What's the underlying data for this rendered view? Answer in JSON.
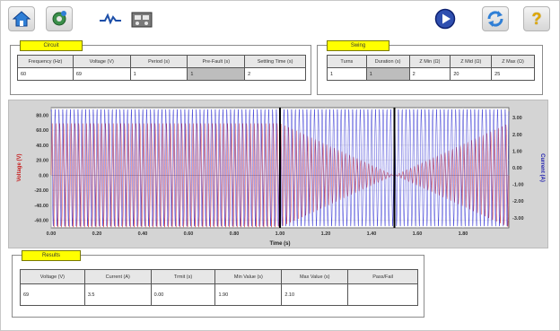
{
  "toolbar": {
    "left": [
      {
        "name": "home-icon"
      },
      {
        "name": "settings-gear-icon"
      },
      {
        "name": "waveform-icon"
      },
      {
        "name": "test-set-icon"
      }
    ],
    "right": [
      {
        "name": "play-icon"
      },
      {
        "name": "refresh-icon"
      },
      {
        "name": "help-icon",
        "glyph": "?"
      }
    ]
  },
  "circuit": {
    "title": "Circuit",
    "headers": [
      "Frequency (Hz)",
      "Voltage (V)",
      "Period (s)",
      "Pre-Fault (s)",
      "Settling Time (s)"
    ],
    "values": [
      "60",
      "69",
      "1",
      "1",
      "2"
    ]
  },
  "swing": {
    "title": "Swing",
    "headers": [
      "Turns",
      "Duration (s)",
      "Z Min (Ω)",
      "Z Mid (Ω)",
      "Z Max (Ω)"
    ],
    "values": [
      "1",
      "1",
      "2",
      "20",
      "25"
    ]
  },
  "results": {
    "title": "Results",
    "headers": [
      "Voltage (V)",
      "Current (A)",
      "Trmit (s)",
      "Min Value (s)",
      "Max Value (s)",
      "Pass/Fail"
    ],
    "values": [
      "69",
      "3.5",
      "0.00",
      "1.90",
      "2.10",
      ""
    ]
  },
  "chart_data": {
    "type": "line",
    "xlabel": "Time (s)",
    "ylabel": "Voltage (V)",
    "y2label": "Current (A)",
    "x_ticks": [
      "0.00",
      "0.20",
      "0.40",
      "0.60",
      "0.80",
      "1.00",
      "1.20",
      "1.40",
      "1.60",
      "1.80"
    ],
    "y_ticks": [
      "80.00",
      "60.00",
      "40.00",
      "20.00",
      "0.00",
      "-20.00",
      "-40.00",
      "-60.00"
    ],
    "y2_ticks": [
      "3.00",
      "2.00",
      "1.00",
      "0.00",
      "-1.00",
      "-2.00",
      "-3.00"
    ],
    "xlim": [
      0,
      2.0
    ],
    "ylim": [
      -70,
      90
    ],
    "y2lim": [
      -3.6,
      3.6
    ],
    "markers_x": [
      1.0,
      1.5
    ],
    "series": [
      {
        "color": "#d42020",
        "role": "voltage",
        "amplitude": 69,
        "frequency": 60
      },
      {
        "color": "#2020d0",
        "role": "current",
        "amplitude": 3.5,
        "frequency": 60
      }
    ],
    "colors": {
      "voltage": "#d42020",
      "current": "#2020d0",
      "markers": "#000000"
    }
  }
}
